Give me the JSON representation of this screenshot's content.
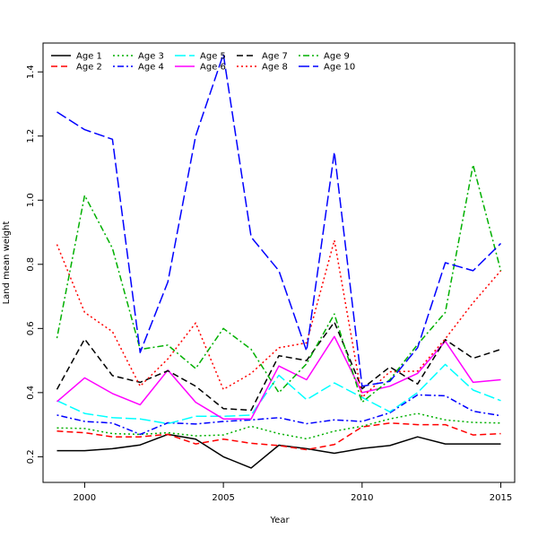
{
  "chart_data": {
    "type": "line",
    "title": "",
    "xlabel": "Year",
    "ylabel": "Land mean weight",
    "xlim": [
      1998.5,
      2015.5
    ],
    "ylim": [
      0.12,
      1.49
    ],
    "xticks": [
      2000,
      2005,
      2010,
      2015
    ],
    "yticks": [
      0.2,
      0.4,
      0.6,
      0.8,
      1.0,
      1.2,
      1.4
    ],
    "ytick_labels": [
      "0.2",
      "0.4",
      "0.6",
      "0.8",
      "1.0",
      "1.2",
      "1.4"
    ],
    "grid": false,
    "legend_position": "top-left",
    "x": [
      1999,
      2000,
      2001,
      2002,
      2003,
      2004,
      2005,
      2006,
      2007,
      2008,
      2009,
      2010,
      2011,
      2012,
      2013,
      2014,
      2015
    ],
    "series": [
      {
        "name": "Age 1",
        "color": "#000000",
        "dash": "solid",
        "width": 1.5,
        "values": [
          0.219,
          0.219,
          0.225,
          0.237,
          0.27,
          0.255,
          0.2,
          0.165,
          0.236,
          0.225,
          0.211,
          0.226,
          0.235,
          0.262,
          0.24,
          0.24,
          0.24
        ]
      },
      {
        "name": "Age 2",
        "color": "#ff0000",
        "dash": "dashed",
        "width": 1.5,
        "values": [
          0.28,
          0.275,
          0.262,
          0.262,
          0.27,
          0.24,
          0.255,
          0.242,
          0.235,
          0.222,
          0.238,
          0.293,
          0.305,
          0.3,
          0.3,
          0.268,
          0.272
        ]
      },
      {
        "name": "Age 3",
        "color": "#00b000",
        "dash": "dotted",
        "width": 1.5,
        "values": [
          0.29,
          0.288,
          0.272,
          0.27,
          0.275,
          0.265,
          0.268,
          0.295,
          0.272,
          0.256,
          0.28,
          0.295,
          0.318,
          0.335,
          0.315,
          0.307,
          0.305
        ]
      },
      {
        "name": "Age 4",
        "color": "#0000ff",
        "dash": "dotdash",
        "width": 1.5,
        "values": [
          0.33,
          0.31,
          0.305,
          0.27,
          0.306,
          0.302,
          0.31,
          0.315,
          0.322,
          0.303,
          0.315,
          0.31,
          0.337,
          0.393,
          0.39,
          0.342,
          0.328
        ]
      },
      {
        "name": "Age 5",
        "color": "#00ffff",
        "dash": "longdash",
        "width": 1.5,
        "values": [
          0.375,
          0.335,
          0.322,
          0.318,
          0.303,
          0.326,
          0.326,
          0.33,
          0.454,
          0.378,
          0.43,
          0.385,
          0.34,
          0.4,
          0.488,
          0.408,
          0.375
        ]
      },
      {
        "name": "Age 6",
        "color": "#ff00ff",
        "dash": "solid",
        "width": 1.5,
        "values": [
          0.372,
          0.446,
          0.397,
          0.362,
          0.47,
          0.37,
          0.318,
          0.318,
          0.483,
          0.44,
          0.575,
          0.4,
          0.42,
          0.46,
          0.56,
          0.432,
          0.44
        ]
      },
      {
        "name": "Age 7",
        "color": "#000000",
        "dash": "dashed",
        "width": 1.5,
        "values": [
          0.41,
          0.567,
          0.453,
          0.432,
          0.468,
          0.42,
          0.35,
          0.345,
          0.515,
          0.5,
          0.62,
          0.412,
          0.48,
          0.427,
          0.565,
          0.507,
          0.535
        ]
      },
      {
        "name": "Age 8",
        "color": "#ff0000",
        "dash": "dotted",
        "width": 1.5,
        "values": [
          0.862,
          0.65,
          0.59,
          0.42,
          0.505,
          0.617,
          0.41,
          0.46,
          0.54,
          0.555,
          0.875,
          0.385,
          0.465,
          0.467,
          0.568,
          0.68,
          0.78
        ]
      },
      {
        "name": "Age 9",
        "color": "#00b000",
        "dash": "dotdash",
        "width": 1.5,
        "values": [
          0.57,
          1.015,
          0.85,
          0.535,
          0.548,
          0.475,
          0.6,
          0.535,
          0.4,
          0.49,
          0.645,
          0.37,
          0.44,
          0.55,
          0.65,
          1.11,
          0.78
        ]
      },
      {
        "name": "Age 10",
        "color": "#0000ff",
        "dash": "longdash",
        "width": 1.5,
        "values": [
          1.275,
          1.22,
          1.19,
          0.525,
          0.745,
          1.2,
          1.455,
          0.885,
          0.78,
          0.53,
          1.15,
          0.42,
          0.435,
          0.54,
          0.805,
          0.78,
          0.865
        ]
      }
    ]
  }
}
